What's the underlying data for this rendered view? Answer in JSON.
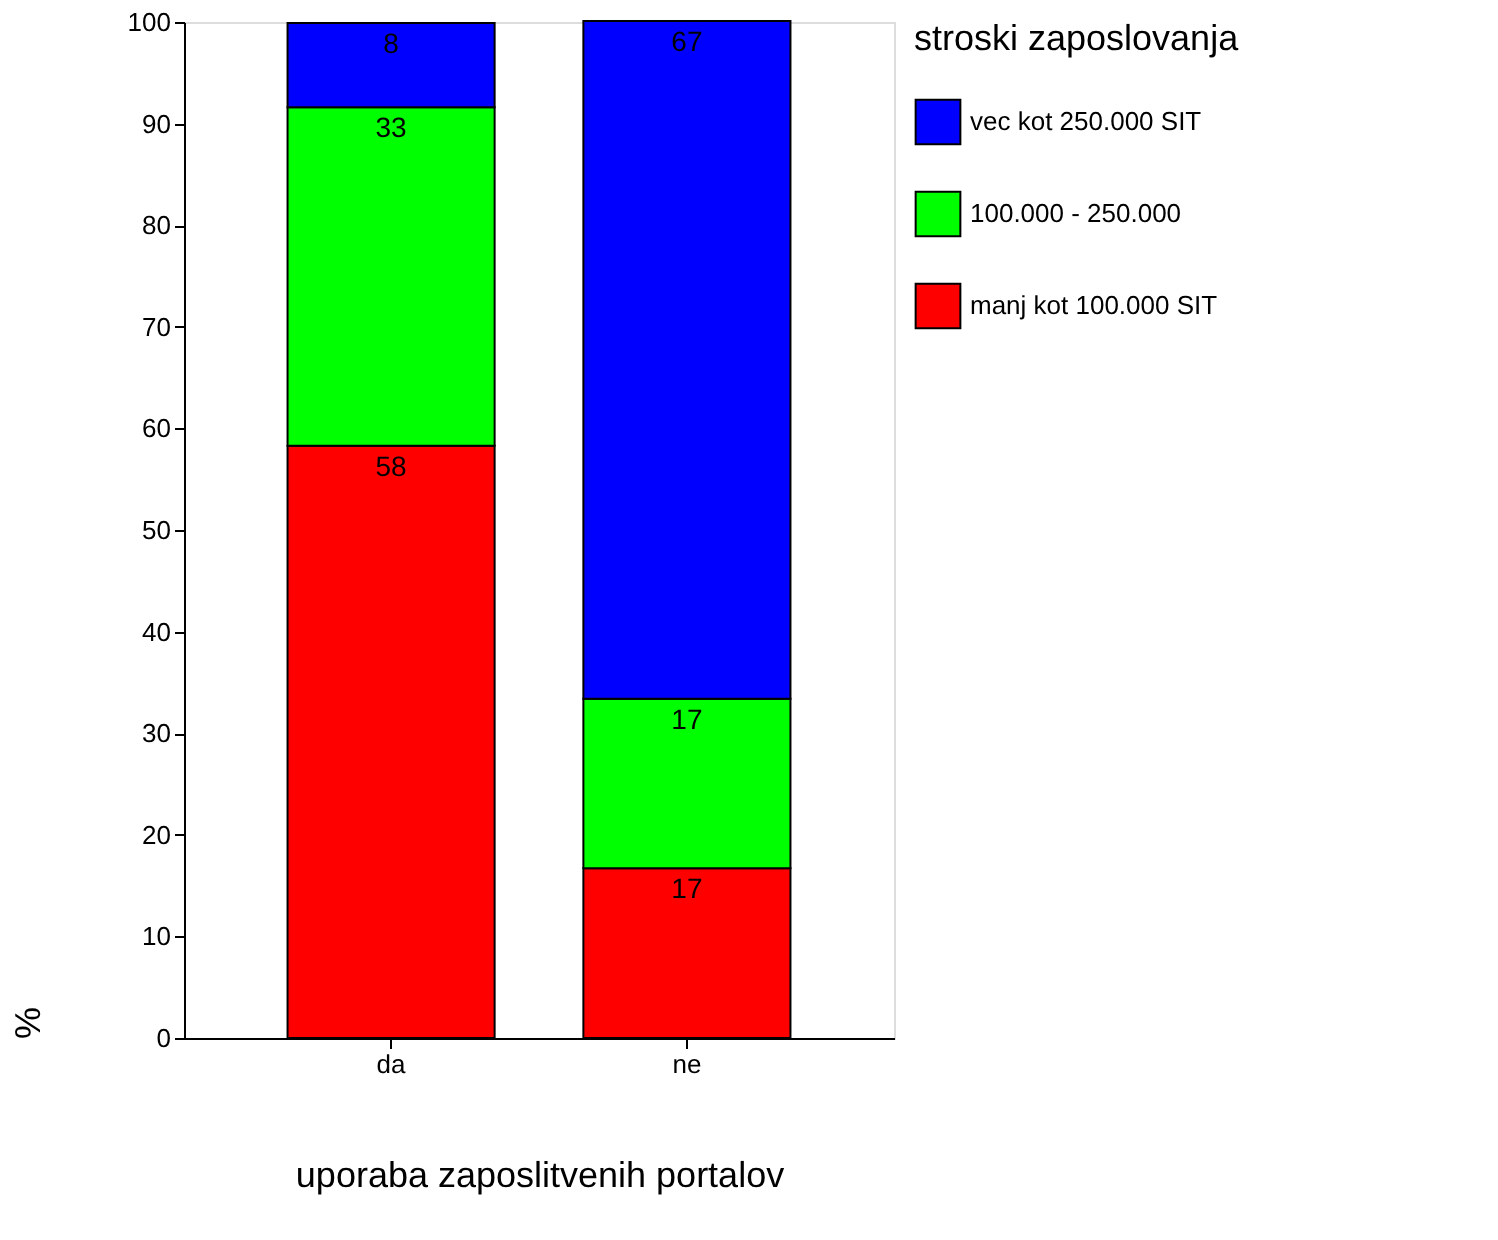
{
  "chart_data": {
    "type": "bar",
    "stacked": true,
    "xlabel": "uporaba zaposlitvenih portalov",
    "ylabel": "%",
    "legend_title": "stroski zaposlovanja",
    "legend": "right",
    "grid": false,
    "categories": [
      "da",
      "ne"
    ],
    "ylim": [
      0,
      100
    ],
    "yticks": [
      0,
      10,
      20,
      30,
      40,
      50,
      60,
      70,
      80,
      90,
      100
    ],
    "series": [
      {
        "name": "manj kot 100.000 SIT",
        "color": "#ff0000",
        "values": [
          58.3,
          16.7
        ],
        "value_labels": [
          "58",
          "17"
        ]
      },
      {
        "name": "100.000 - 250.000",
        "color": "#00ff00",
        "values": [
          33.3,
          16.7
        ],
        "value_labels": [
          "33",
          "17"
        ]
      },
      {
        "name": "vec kot 250.000 SIT",
        "color": "#0000ff",
        "values": [
          8.3,
          66.7
        ],
        "value_labels": [
          "8",
          "67"
        ]
      }
    ]
  }
}
